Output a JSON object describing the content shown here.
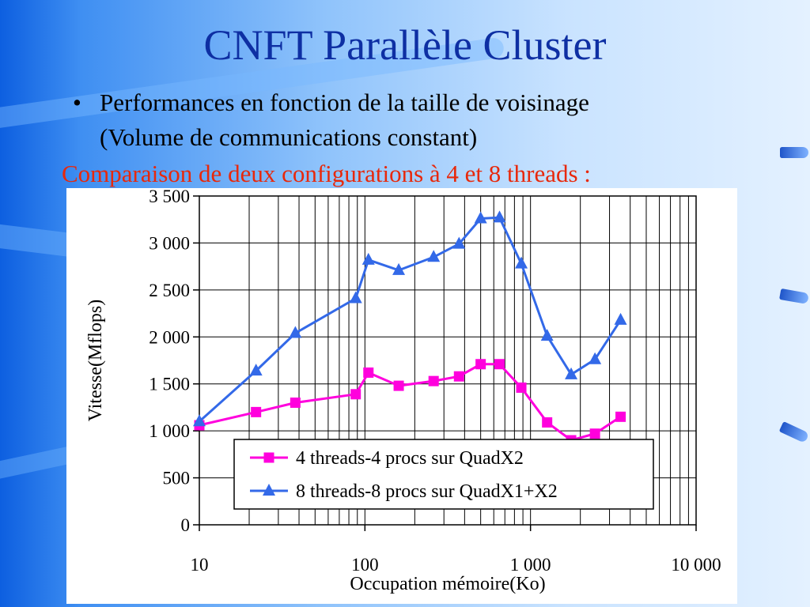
{
  "slide": {
    "title": "CNFT Parallèle Cluster",
    "bullet": "•",
    "bullet_line1": "Performances en fonction de la taille de voisinage",
    "bullet_line2": "(Volume de communications constant)",
    "subtitle": "Comparaison de deux configurations à 4 et 8 threads :"
  },
  "colors": {
    "title": "#0e2fa3",
    "subtitle": "#e8280a",
    "series_4": "#ff00dd",
    "series_8": "#3369e8"
  },
  "chart_data": {
    "type": "line",
    "title": "",
    "xlabel": "Occupation mémoire(Ko)",
    "ylabel": "Vitesse(Mflops)",
    "x_scale": "log",
    "xlim": [
      10,
      10000
    ],
    "ylim": [
      0,
      3500
    ],
    "grid": true,
    "legend_position": "bottom-right",
    "x_ticks": [
      {
        "value": 10,
        "label": "10"
      },
      {
        "value": 100,
        "label": "100"
      },
      {
        "value": 1000,
        "label": "1 000"
      },
      {
        "value": 10000,
        "label": "10 000"
      }
    ],
    "y_ticks": [
      {
        "value": 0,
        "label": "0"
      },
      {
        "value": 500,
        "label": "500"
      },
      {
        "value": 1000,
        "label": "1 000"
      },
      {
        "value": 1500,
        "label": "1 500"
      },
      {
        "value": 2000,
        "label": "2 000"
      },
      {
        "value": 2500,
        "label": "2 500"
      },
      {
        "value": 3000,
        "label": "3 000"
      },
      {
        "value": 3500,
        "label": "3 500"
      }
    ],
    "series": [
      {
        "name": "4 threads-4 procs sur QuadX2",
        "marker": "square",
        "color": "#ff00dd",
        "points": [
          [
            10,
            1060
          ],
          [
            22,
            1200
          ],
          [
            38,
            1300
          ],
          [
            88,
            1390
          ],
          [
            105,
            1620
          ],
          [
            160,
            1480
          ],
          [
            260,
            1530
          ],
          [
            370,
            1580
          ],
          [
            500,
            1710
          ],
          [
            650,
            1710
          ],
          [
            880,
            1460
          ],
          [
            1260,
            1090
          ],
          [
            1760,
            900
          ],
          [
            2450,
            970
          ],
          [
            3500,
            1150
          ]
        ]
      },
      {
        "name": "8 threads-8 procs sur QuadX1+X2",
        "marker": "triangle",
        "color": "#3369e8",
        "points": [
          [
            10,
            1100
          ],
          [
            22,
            1640
          ],
          [
            38,
            2040
          ],
          [
            88,
            2410
          ],
          [
            105,
            2820
          ],
          [
            160,
            2710
          ],
          [
            260,
            2850
          ],
          [
            370,
            2990
          ],
          [
            500,
            3260
          ],
          [
            650,
            3270
          ],
          [
            880,
            2780
          ],
          [
            1260,
            2010
          ],
          [
            1760,
            1600
          ],
          [
            2450,
            1760
          ],
          [
            3500,
            2180
          ]
        ]
      }
    ]
  }
}
